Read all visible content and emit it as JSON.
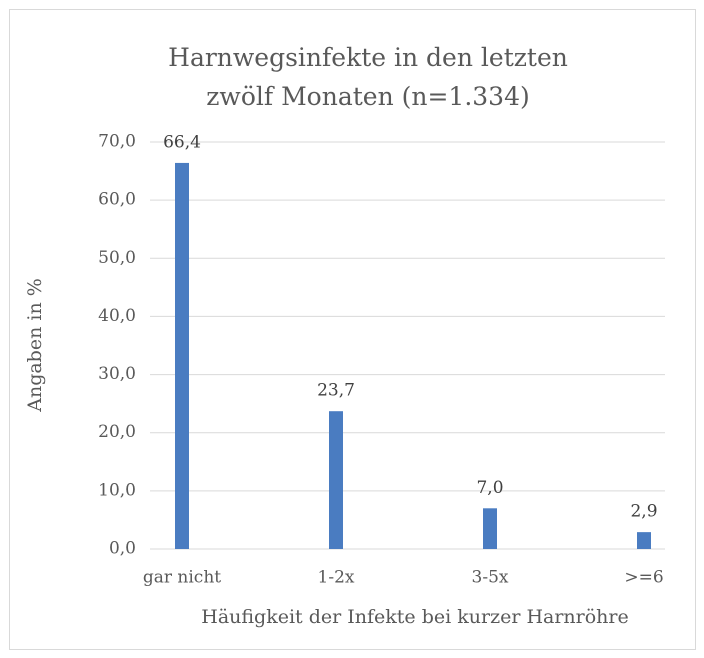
{
  "chart_data": {
    "type": "bar",
    "title": "Harnwegsinfekte in den letzten zwölf Monaten (n=1.334)",
    "x_label": "Häufigkeit der Infekte bei kurzer Harnröhre",
    "y_label": "Angaben in %",
    "categories": [
      "gar nicht",
      "1-2x",
      "3-5x",
      ">=6"
    ],
    "values": [
      66.4,
      23.7,
      7.0,
      2.9
    ],
    "value_labels": [
      "66,4",
      "23,7",
      "7,0",
      "2,9"
    ],
    "color": "#4a7cc1",
    "ylim": [
      0,
      70
    ],
    "yticks": [
      {
        "value": 0,
        "label": "0,0"
      },
      {
        "value": 10,
        "label": "10,0"
      },
      {
        "value": 20,
        "label": "20,0"
      },
      {
        "value": 30,
        "label": "30,0"
      },
      {
        "value": 40,
        "label": "40,0"
      },
      {
        "value": 50,
        "label": "50,0"
      },
      {
        "value": 60,
        "label": "60,0"
      },
      {
        "value": 70,
        "label": "70,0"
      }
    ],
    "grid": true
  }
}
